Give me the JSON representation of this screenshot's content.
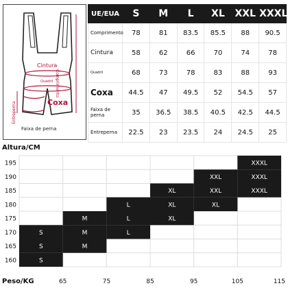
{
  "diagram": {
    "labels": {
      "cintura": "Cintura",
      "comprimento": "Comprimento",
      "quadril": "Quadril",
      "coxa": "Coxa",
      "entreperna": "Entreperna",
      "faixa": "Faixa de perna"
    }
  },
  "table": {
    "corner": "UE/EUA",
    "sizes": [
      "S",
      "M",
      "L",
      "XL",
      "XXL",
      "XXXL"
    ],
    "rows": [
      {
        "label": "Comprimento",
        "style": "",
        "values": [
          "78",
          "81",
          "83.5",
          "85.5",
          "88",
          "90.5"
        ]
      },
      {
        "label": "Cintura",
        "style": "mid",
        "values": [
          "58",
          "62",
          "66",
          "70",
          "74",
          "78"
        ]
      },
      {
        "label": "Quadril",
        "style": "tiny",
        "values": [
          "68",
          "73",
          "78",
          "83",
          "88",
          "93"
        ]
      },
      {
        "label": "Coxa",
        "style": "big",
        "values": [
          "44.5",
          "47",
          "49.5",
          "52",
          "54.5",
          "57"
        ]
      },
      {
        "label": "Faixa de perna",
        "style": "",
        "values": [
          "35",
          "36.5",
          "38.5",
          "40.5",
          "42.5",
          "44.5"
        ]
      },
      {
        "label": "Entreperna",
        "style": "",
        "values": [
          "22.5",
          "23",
          "23.5",
          "24",
          "24.5",
          "25"
        ]
      }
    ]
  },
  "chart_data": {
    "type": "heatmap",
    "ylabel": "Altura/CM",
    "xlabel": "Peso/KG",
    "x_ticks": [
      65,
      75,
      85,
      95,
      105,
      115
    ],
    "y_ticks": [
      160,
      165,
      170,
      175,
      180,
      185,
      190,
      195
    ],
    "x_bins": [
      [
        55,
        65
      ],
      [
        65,
        75
      ],
      [
        75,
        85
      ],
      [
        85,
        95
      ],
      [
        95,
        105
      ],
      [
        105,
        115
      ]
    ],
    "y_bins": [
      [
        157.5,
        162.5
      ],
      [
        162.5,
        167.5
      ],
      [
        167.5,
        172.5
      ],
      [
        172.5,
        177.5
      ],
      [
        177.5,
        182.5
      ],
      [
        182.5,
        187.5
      ],
      [
        187.5,
        192.5
      ],
      [
        192.5,
        197.5
      ]
    ],
    "cells": [
      {
        "x": 0,
        "y": 0,
        "label": "S"
      },
      {
        "x": 0,
        "y": 1,
        "label": "S"
      },
      {
        "x": 1,
        "y": 1,
        "label": "M"
      },
      {
        "x": 0,
        "y": 2,
        "label": "S"
      },
      {
        "x": 1,
        "y": 2,
        "label": "M"
      },
      {
        "x": 2,
        "y": 2,
        "label": "L"
      },
      {
        "x": 1,
        "y": 3,
        "label": "M"
      },
      {
        "x": 2,
        "y": 3,
        "label": "L"
      },
      {
        "x": 3,
        "y": 3,
        "label": "XL"
      },
      {
        "x": 2,
        "y": 4,
        "label": "L"
      },
      {
        "x": 3,
        "y": 4,
        "label": "XL"
      },
      {
        "x": 4,
        "y": 4,
        "label": "XL"
      },
      {
        "x": 3,
        "y": 5,
        "label": "XL"
      },
      {
        "x": 4,
        "y": 5,
        "label": "XXL"
      },
      {
        "x": 5,
        "y": 5,
        "label": "XXXL"
      },
      {
        "x": 4,
        "y": 6,
        "label": "XXL"
      },
      {
        "x": 5,
        "y": 6,
        "label": "XXXL"
      },
      {
        "x": 5,
        "y": 7,
        "label": "XXXL"
      }
    ],
    "cell_color": "#1a1a1a",
    "grid": true
  }
}
